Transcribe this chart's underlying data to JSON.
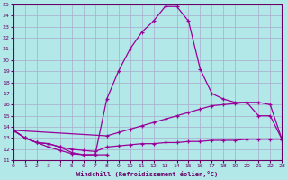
{
  "background_color": "#b2e8e8",
  "grid_color": "#aaaacc",
  "line_color": "#990099",
  "xlim": [
    0,
    23
  ],
  "ylim": [
    11,
    25
  ],
  "xticks": [
    0,
    1,
    2,
    3,
    4,
    5,
    6,
    7,
    8,
    9,
    10,
    11,
    12,
    13,
    14,
    15,
    16,
    17,
    18,
    19,
    20,
    21,
    22,
    23
  ],
  "yticks": [
    11,
    12,
    13,
    14,
    15,
    16,
    17,
    18,
    19,
    20,
    21,
    22,
    23,
    24,
    25
  ],
  "xlabel": "Windchill (Refroidissement éolien,°C)",
  "curve_main_x": [
    0,
    1,
    2,
    3,
    4,
    5,
    6,
    7,
    8,
    9,
    10,
    11,
    12,
    13,
    14,
    15,
    16,
    17,
    18,
    19,
    20,
    21,
    22,
    23
  ],
  "curve_main_y": [
    13.7,
    13.0,
    12.6,
    12.2,
    11.9,
    11.6,
    11.5,
    11.5,
    16.5,
    19.0,
    21.0,
    22.5,
    23.5,
    24.8,
    24.8,
    23.5,
    19.2,
    17.0,
    16.5,
    16.2,
    16.2,
    15.0,
    15.0,
    12.9
  ],
  "curve_upper_x": [
    0,
    8,
    9,
    10,
    11,
    12,
    13,
    14,
    15,
    16,
    17,
    18,
    19,
    20,
    21,
    22,
    23
  ],
  "curve_upper_y": [
    13.7,
    13.2,
    13.5,
    13.8,
    14.1,
    14.4,
    14.7,
    15.0,
    15.3,
    15.6,
    15.9,
    16.0,
    16.1,
    16.2,
    16.2,
    16.0,
    12.9
  ],
  "curve_lower_x": [
    0,
    1,
    2,
    3,
    4,
    5,
    6,
    7,
    8,
    9,
    10,
    11,
    12,
    13,
    14,
    15,
    16,
    17,
    18,
    19,
    20,
    21,
    22,
    23
  ],
  "curve_lower_y": [
    13.7,
    13.0,
    12.6,
    12.5,
    12.2,
    12.0,
    11.9,
    11.8,
    12.2,
    12.3,
    12.4,
    12.5,
    12.5,
    12.6,
    12.6,
    12.7,
    12.7,
    12.8,
    12.8,
    12.8,
    12.9,
    12.9,
    12.9,
    12.9
  ],
  "curve_dip_x": [
    0,
    1,
    2,
    3,
    4,
    5,
    6,
    7,
    8
  ],
  "curve_dip_y": [
    13.7,
    13.0,
    12.6,
    12.5,
    12.2,
    11.7,
    11.5,
    11.5,
    11.5
  ]
}
